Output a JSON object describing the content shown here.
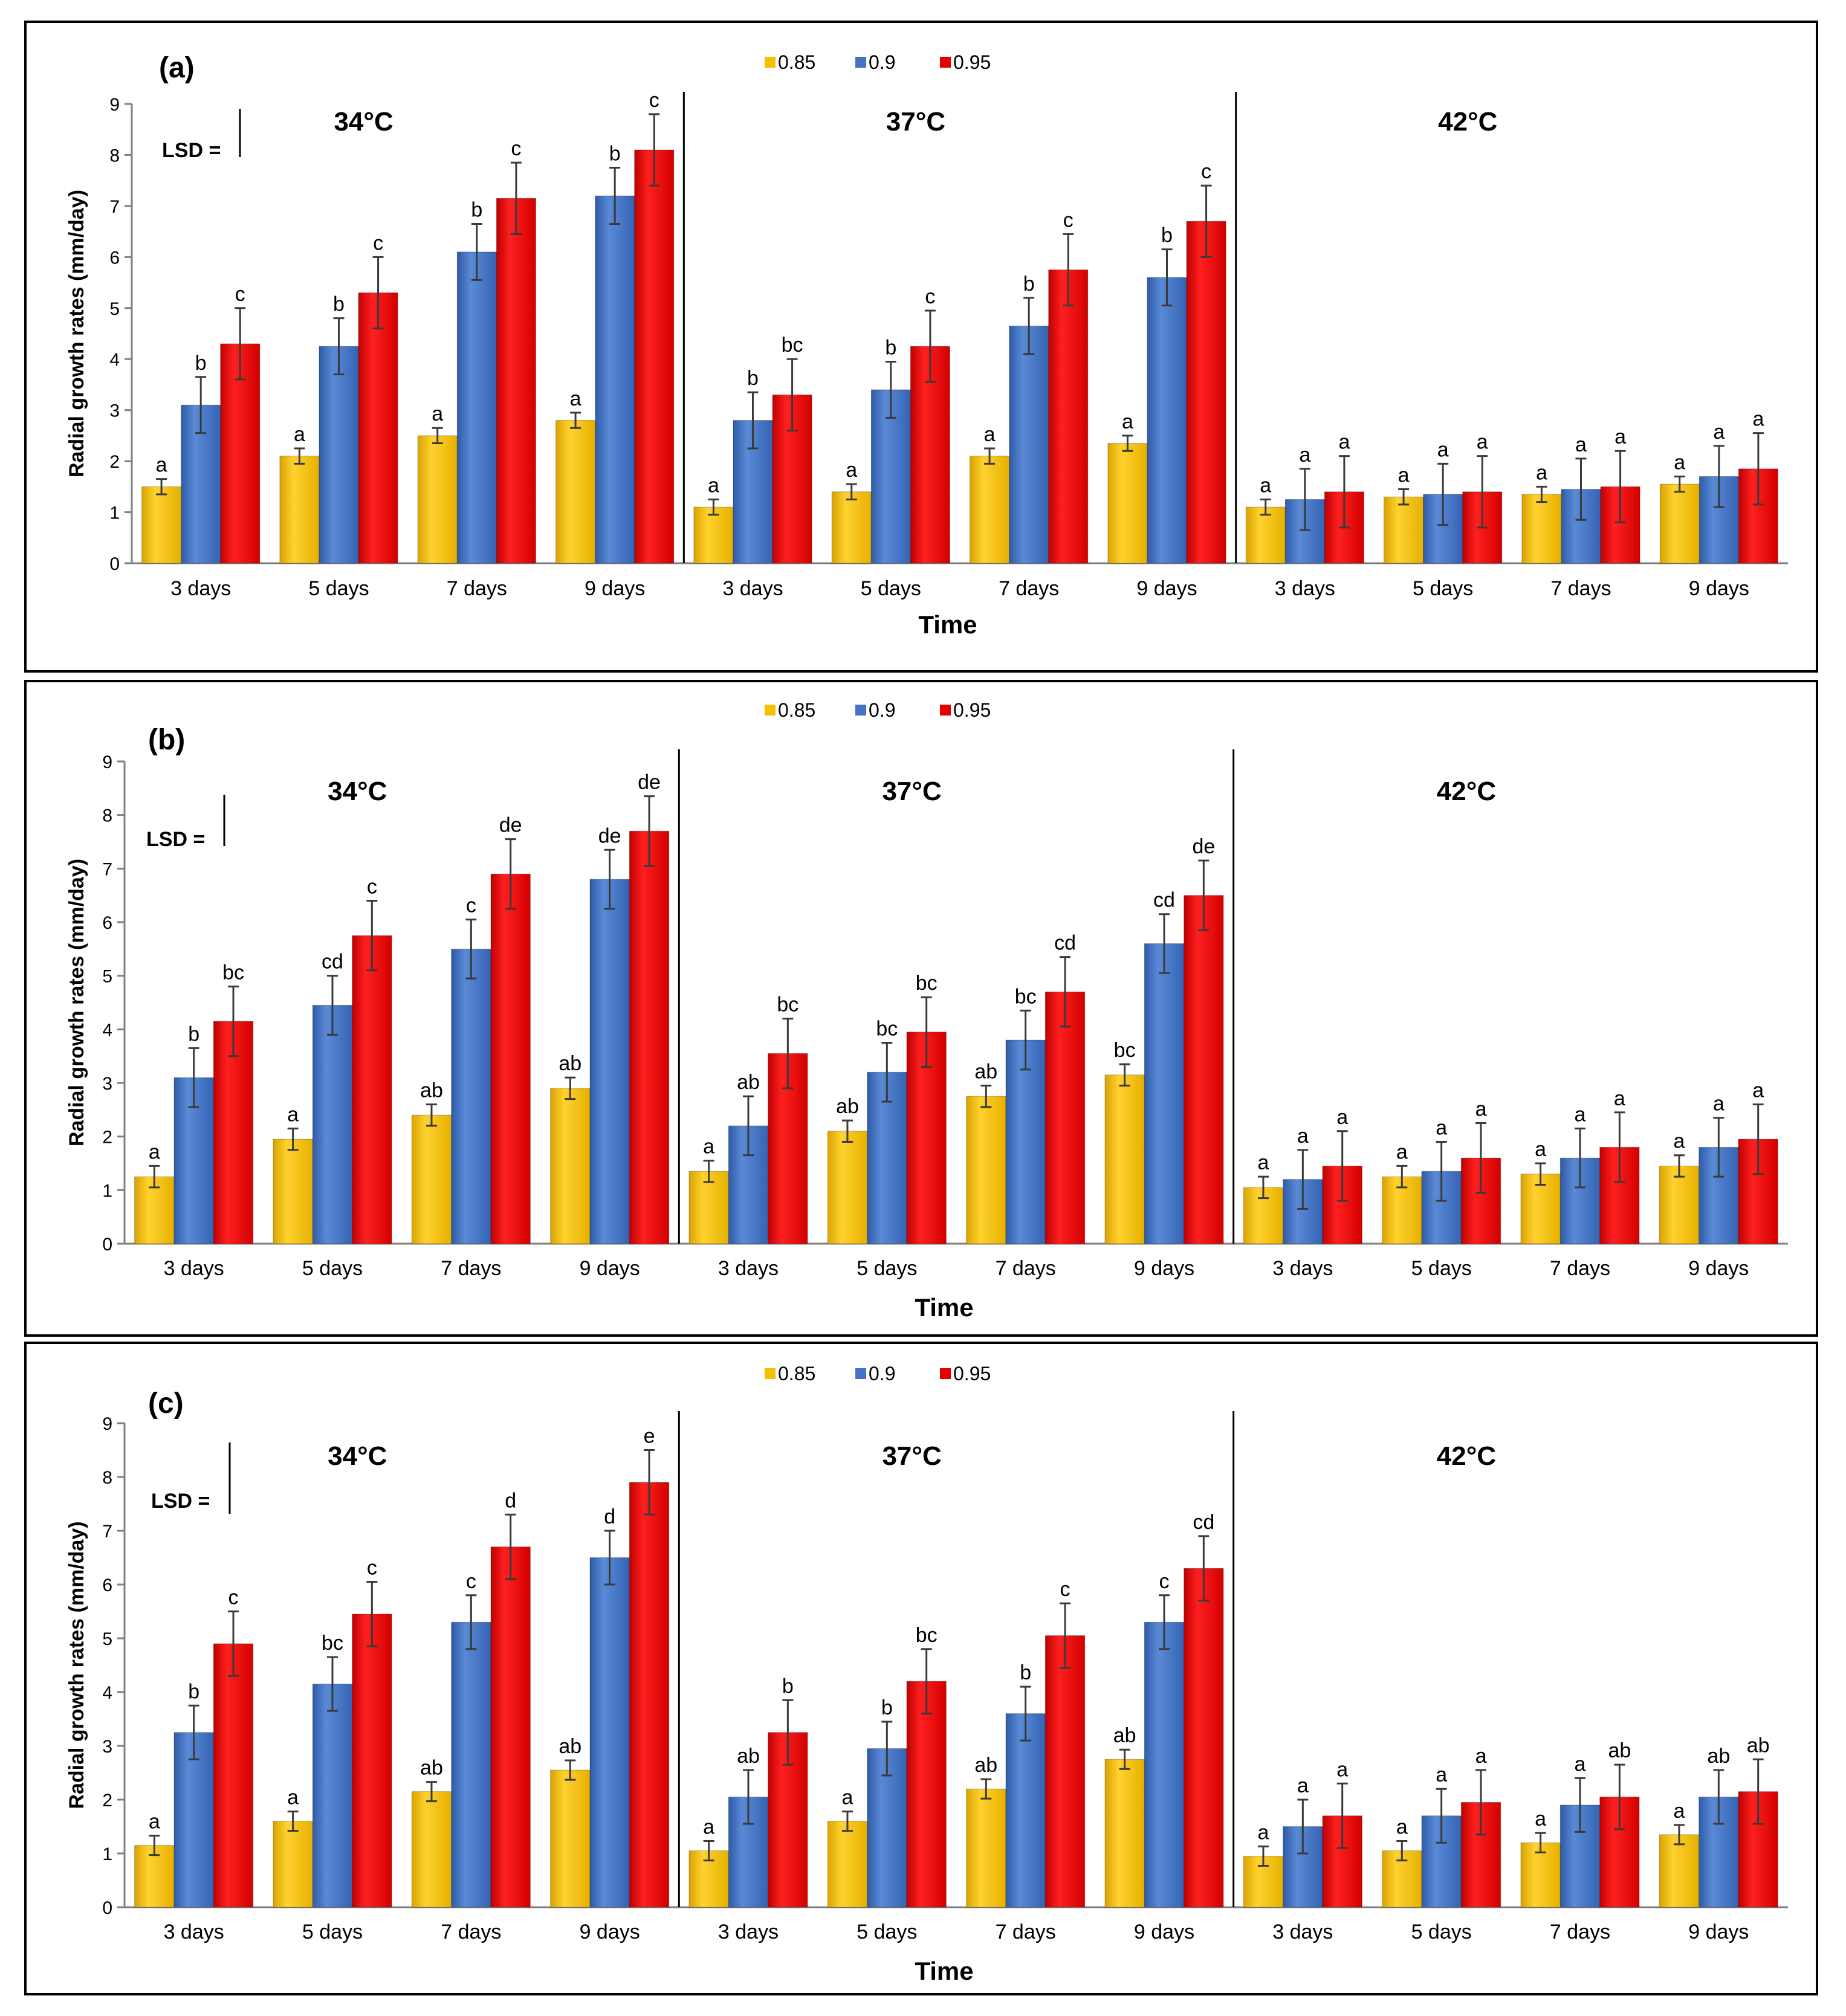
{
  "colors": {
    "s085": "#f5c000",
    "s09": "#4472c4",
    "s095": "#e60000"
  },
  "legend": [
    "0.85",
    "0.9",
    "0.95"
  ],
  "chart_data": [
    {
      "type": "bar",
      "panel_label": "(a)",
      "ylabel": "Radial growth rates (mm/day)",
      "xlabel": "Time",
      "lsd_label": "LSD =",
      "ylim": [
        0,
        9
      ],
      "yticks": [
        "0",
        "1",
        "2",
        "3",
        "4",
        "5",
        "6",
        "7",
        "8",
        "9"
      ],
      "groups": [
        {
          "temp": "34",
          "unit": "°C",
          "categories": [
            "3 days",
            "5 days",
            "7 days",
            "9 days"
          ],
          "series": [
            {
              "name": "0.85",
              "values": [
                1.5,
                2.1,
                2.5,
                2.8
              ],
              "errors": [
                0.15,
                0.15,
                0.15,
                0.15
              ],
              "letters": [
                "a",
                "a",
                "a",
                "a"
              ]
            },
            {
              "name": "0.9",
              "values": [
                3.1,
                4.25,
                6.1,
                7.2
              ],
              "errors": [
                0.55,
                0.55,
                0.55,
                0.55
              ],
              "letters": [
                "b",
                "b",
                "b",
                "b"
              ]
            },
            {
              "name": "0.95",
              "values": [
                4.3,
                5.3,
                7.15,
                8.1
              ],
              "errors": [
                0.7,
                0.7,
                0.7,
                0.7
              ],
              "letters": [
                "c",
                "c",
                "c",
                "c"
              ]
            }
          ]
        },
        {
          "temp": "37",
          "unit": "°C",
          "categories": [
            "3 days",
            "5 days",
            "7 days",
            "9 days"
          ],
          "series": [
            {
              "name": "0.85",
              "values": [
                1.1,
                1.4,
                2.1,
                2.35
              ],
              "errors": [
                0.15,
                0.15,
                0.15,
                0.15
              ],
              "letters": [
                "a",
                "a",
                "a",
                "a"
              ]
            },
            {
              "name": "0.9",
              "values": [
                2.8,
                3.4,
                4.65,
                5.6
              ],
              "errors": [
                0.55,
                0.55,
                0.55,
                0.55
              ],
              "letters": [
                "b",
                "b",
                "b",
                "b"
              ]
            },
            {
              "name": "0.95",
              "values": [
                3.3,
                4.25,
                5.75,
                6.7
              ],
              "errors": [
                0.7,
                0.7,
                0.7,
                0.7
              ],
              "letters": [
                "bc",
                "c",
                "c",
                "c"
              ]
            }
          ]
        },
        {
          "temp": "42",
          "unit": "°C",
          "categories": [
            "3 days",
            "5 days",
            "7 days",
            "9 days"
          ],
          "series": [
            {
              "name": "0.85",
              "values": [
                1.1,
                1.3,
                1.35,
                1.55
              ],
              "errors": [
                0.15,
                0.15,
                0.15,
                0.15
              ],
              "letters": [
                "a",
                "a",
                "a",
                "a"
              ]
            },
            {
              "name": "0.9",
              "values": [
                1.25,
                1.35,
                1.45,
                1.7
              ],
              "errors": [
                0.6,
                0.6,
                0.6,
                0.6
              ],
              "letters": [
                "a",
                "a",
                "a",
                "a"
              ]
            },
            {
              "name": "0.95",
              "values": [
                1.4,
                1.4,
                1.5,
                1.85
              ],
              "errors": [
                0.7,
                0.7,
                0.7,
                0.7
              ],
              "letters": [
                "a",
                "a",
                "a",
                "a"
              ]
            }
          ]
        }
      ]
    },
    {
      "type": "bar",
      "panel_label": "(b)",
      "ylabel": "Radial growth rates (mm/day)",
      "xlabel": "Time",
      "lsd_label": "LSD =",
      "ylim": [
        0,
        9
      ],
      "yticks": [
        "0",
        "1",
        "2",
        "3",
        "4",
        "5",
        "6",
        "7",
        "8",
        "9"
      ],
      "groups": [
        {
          "temp": "34",
          "unit": "°C",
          "categories": [
            "3 days",
            "5 days",
            "7 days",
            "9 days"
          ],
          "series": [
            {
              "name": "0.85",
              "values": [
                1.25,
                1.95,
                2.4,
                2.9
              ],
              "errors": [
                0.2,
                0.2,
                0.2,
                0.2
              ],
              "letters": [
                "a",
                "a",
                "ab",
                "ab"
              ]
            },
            {
              "name": "0.9",
              "values": [
                3.1,
                4.45,
                5.5,
                6.8
              ],
              "errors": [
                0.55,
                0.55,
                0.55,
                0.55
              ],
              "letters": [
                "b",
                "cd",
                "c",
                "de"
              ]
            },
            {
              "name": "0.95",
              "values": [
                4.15,
                5.75,
                6.9,
                7.7
              ],
              "errors": [
                0.65,
                0.65,
                0.65,
                0.65
              ],
              "letters": [
                "bc",
                "c",
                "de",
                "de"
              ]
            }
          ]
        },
        {
          "temp": "37",
          "unit": "°C",
          "categories": [
            "3 days",
            "5 days",
            "7 days",
            "9 days"
          ],
          "series": [
            {
              "name": "0.85",
              "values": [
                1.35,
                2.1,
                2.75,
                3.15
              ],
              "errors": [
                0.2,
                0.2,
                0.2,
                0.2
              ],
              "letters": [
                "a",
                "ab",
                "ab",
                "bc"
              ]
            },
            {
              "name": "0.9",
              "values": [
                2.2,
                3.2,
                3.8,
                5.6
              ],
              "errors": [
                0.55,
                0.55,
                0.55,
                0.55
              ],
              "letters": [
                "ab",
                "bc",
                "bc",
                "cd"
              ]
            },
            {
              "name": "0.95",
              "values": [
                3.55,
                3.95,
                4.7,
                6.5
              ],
              "errors": [
                0.65,
                0.65,
                0.65,
                0.65
              ],
              "letters": [
                "bc",
                "bc",
                "cd",
                "de"
              ]
            }
          ]
        },
        {
          "temp": "42",
          "unit": "°C",
          "categories": [
            "3 days",
            "5 days",
            "7 days",
            "9 days"
          ],
          "series": [
            {
              "name": "0.85",
              "values": [
                1.05,
                1.25,
                1.3,
                1.45
              ],
              "errors": [
                0.2,
                0.2,
                0.2,
                0.2
              ],
              "letters": [
                "a",
                "a",
                "a",
                "a"
              ]
            },
            {
              "name": "0.9",
              "values": [
                1.2,
                1.35,
                1.6,
                1.8
              ],
              "errors": [
                0.55,
                0.55,
                0.55,
                0.55
              ],
              "letters": [
                "a",
                "a",
                "a",
                "a"
              ]
            },
            {
              "name": "0.95",
              "values": [
                1.45,
                1.6,
                1.8,
                1.95
              ],
              "errors": [
                0.65,
                0.65,
                0.65,
                0.65
              ],
              "letters": [
                "a",
                "a",
                "a",
                "a"
              ]
            }
          ]
        }
      ]
    },
    {
      "type": "bar",
      "panel_label": "(c)",
      "ylabel": "Radial growth rates (mm/day)",
      "xlabel": "Time",
      "lsd_label": "LSD =",
      "ylim": [
        0,
        9
      ],
      "yticks": [
        "0",
        "1",
        "2",
        "3",
        "4",
        "5",
        "6",
        "7",
        "8",
        "9"
      ],
      "groups": [
        {
          "temp": "34",
          "unit": "°C",
          "categories": [
            "3 days",
            "5 days",
            "7 days",
            "9 days"
          ],
          "series": [
            {
              "name": "0.85",
              "values": [
                1.15,
                1.6,
                2.15,
                2.55
              ],
              "errors": [
                0.18,
                0.18,
                0.18,
                0.18
              ],
              "letters": [
                "a",
                "a",
                "ab",
                "ab"
              ]
            },
            {
              "name": "0.9",
              "values": [
                3.25,
                4.15,
                5.3,
                6.5
              ],
              "errors": [
                0.5,
                0.5,
                0.5,
                0.5
              ],
              "letters": [
                "b",
                "bc",
                "c",
                "d"
              ]
            },
            {
              "name": "0.95",
              "values": [
                4.9,
                5.45,
                6.7,
                7.9
              ],
              "errors": [
                0.6,
                0.6,
                0.6,
                0.6
              ],
              "letters": [
                "c",
                "c",
                "d",
                "e"
              ]
            }
          ]
        },
        {
          "temp": "37",
          "unit": "°C",
          "categories": [
            "3 days",
            "5 days",
            "7 days",
            "9 days"
          ],
          "series": [
            {
              "name": "0.85",
              "values": [
                1.05,
                1.6,
                2.2,
                2.75
              ],
              "errors": [
                0.18,
                0.18,
                0.18,
                0.18
              ],
              "letters": [
                "a",
                "a",
                "ab",
                "ab"
              ]
            },
            {
              "name": "0.9",
              "values": [
                2.05,
                2.95,
                3.6,
                5.3
              ],
              "errors": [
                0.5,
                0.5,
                0.5,
                0.5
              ],
              "letters": [
                "ab",
                "b",
                "b",
                "c"
              ]
            },
            {
              "name": "0.95",
              "values": [
                3.25,
                4.2,
                5.05,
                6.3
              ],
              "errors": [
                0.6,
                0.6,
                0.6,
                0.6
              ],
              "letters": [
                "b",
                "bc",
                "c",
                "cd"
              ]
            }
          ]
        },
        {
          "temp": "42",
          "unit": "°C",
          "categories": [
            "3 days",
            "5 days",
            "7 days",
            "9 days"
          ],
          "series": [
            {
              "name": "0.85",
              "values": [
                0.95,
                1.05,
                1.2,
                1.35
              ],
              "errors": [
                0.18,
                0.18,
                0.18,
                0.18
              ],
              "letters": [
                "a",
                "a",
                "a",
                "a"
              ]
            },
            {
              "name": "0.9",
              "values": [
                1.5,
                1.7,
                1.9,
                2.05
              ],
              "errors": [
                0.5,
                0.5,
                0.5,
                0.5
              ],
              "letters": [
                "a",
                "a",
                "a",
                "ab"
              ]
            },
            {
              "name": "0.95",
              "values": [
                1.7,
                1.95,
                2.05,
                2.15
              ],
              "errors": [
                0.6,
                0.6,
                0.6,
                0.6
              ],
              "letters": [
                "a",
                "a",
                "ab",
                "ab"
              ]
            }
          ]
        }
      ]
    }
  ]
}
